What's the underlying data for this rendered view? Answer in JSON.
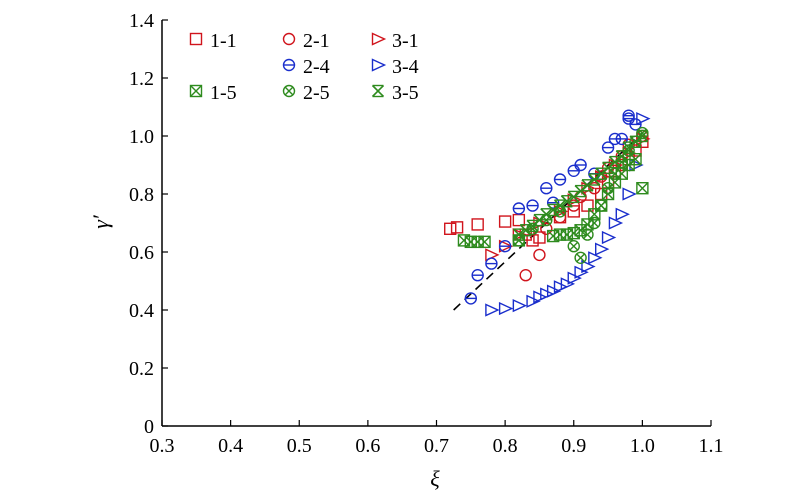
{
  "chart_data": {
    "type": "scatter",
    "title": "",
    "xlabel": "ξ",
    "ylabel": "γ′",
    "xlim": [
      0.3,
      1.1
    ],
    "ylim": [
      0,
      1.4
    ],
    "xticks": [
      0.3,
      0.4,
      0.5,
      0.6,
      0.7,
      0.8,
      0.9,
      1.0,
      1.1
    ],
    "yticks": [
      0,
      0.2,
      0.4,
      0.6,
      0.8,
      1.0,
      1.2,
      1.4
    ],
    "xtick_labels": [
      "0.3",
      "0.4",
      "0.5",
      "0.6",
      "0.7",
      "0.8",
      "0.9",
      "1.0",
      "1.1"
    ],
    "ytick_labels": [
      "0",
      "0.2",
      "0.4",
      "0.6",
      "0.8",
      "1.0",
      "1.2",
      "1.4"
    ],
    "grid": false,
    "legend_position": "top-left",
    "legend_order": [
      "1-1",
      "2-1",
      "3-1",
      "",
      "2-4",
      "3-4",
      "1-5",
      "2-5",
      "3-5"
    ],
    "fit_line": {
      "style": "dashed",
      "color": "#000000",
      "points": [
        [
          0.725,
          0.4
        ],
        [
          1.0,
          1.01
        ]
      ]
    },
    "series": [
      {
        "name": "1-1",
        "marker": "square",
        "color": "#d0141c",
        "points": [
          [
            0.72,
            0.68
          ],
          [
            0.73,
            0.685
          ],
          [
            0.76,
            0.695
          ],
          [
            0.8,
            0.705
          ],
          [
            0.82,
            0.71
          ],
          [
            0.83,
            0.66
          ],
          [
            0.84,
            0.64
          ],
          [
            0.85,
            0.65
          ],
          [
            0.88,
            0.72
          ],
          [
            0.9,
            0.74
          ],
          [
            0.92,
            0.76
          ],
          [
            0.94,
            0.8
          ],
          [
            0.95,
            0.84
          ],
          [
            0.96,
            0.88
          ],
          [
            0.97,
            0.9
          ],
          [
            0.98,
            0.92
          ],
          [
            0.99,
            0.95
          ],
          [
            1.0,
            0.98
          ]
        ]
      },
      {
        "name": "2-1",
        "marker": "circle",
        "color": "#d0141c",
        "points": [
          [
            0.83,
            0.52
          ],
          [
            0.85,
            0.59
          ],
          [
            0.86,
            0.68
          ],
          [
            0.88,
            0.72
          ],
          [
            0.9,
            0.76
          ],
          [
            0.91,
            0.79
          ],
          [
            0.93,
            0.82
          ],
          [
            0.94,
            0.86
          ],
          [
            0.95,
            0.89
          ],
          [
            0.97,
            0.93
          ],
          [
            0.98,
            0.97
          ],
          [
            1.0,
            1.0
          ]
        ]
      },
      {
        "name": "3-1",
        "marker": "triangle-right",
        "color": "#d0141c",
        "points": [
          [
            0.78,
            0.59
          ],
          [
            0.8,
            0.62
          ],
          [
            0.82,
            0.66
          ],
          [
            0.85,
            0.7
          ],
          [
            0.88,
            0.74
          ],
          [
            0.9,
            0.78
          ],
          [
            0.92,
            0.82
          ],
          [
            0.94,
            0.86
          ],
          [
            0.96,
            0.9
          ],
          [
            0.98,
            0.94
          ],
          [
            1.0,
            0.99
          ]
        ]
      },
      {
        "name": "2-4",
        "marker": "circle-bar",
        "color": "#1a2ecc",
        "points": [
          [
            0.75,
            0.44
          ],
          [
            0.76,
            0.52
          ],
          [
            0.78,
            0.56
          ],
          [
            0.8,
            0.62
          ],
          [
            0.82,
            0.75
          ],
          [
            0.84,
            0.76
          ],
          [
            0.86,
            0.82
          ],
          [
            0.87,
            0.77
          ],
          [
            0.88,
            0.85
          ],
          [
            0.9,
            0.88
          ],
          [
            0.91,
            0.9
          ],
          [
            0.93,
            0.87
          ],
          [
            0.95,
            0.96
          ],
          [
            0.96,
            0.99
          ],
          [
            0.97,
            0.99
          ],
          [
            0.98,
            1.06
          ],
          [
            0.98,
            1.07
          ],
          [
            0.99,
            1.04
          ]
        ]
      },
      {
        "name": "3-4",
        "marker": "triangle-right",
        "color": "#1a2ecc",
        "points": [
          [
            0.78,
            0.4
          ],
          [
            0.8,
            0.405
          ],
          [
            0.82,
            0.415
          ],
          [
            0.84,
            0.43
          ],
          [
            0.85,
            0.445
          ],
          [
            0.86,
            0.455
          ],
          [
            0.87,
            0.465
          ],
          [
            0.88,
            0.48
          ],
          [
            0.89,
            0.49
          ],
          [
            0.9,
            0.51
          ],
          [
            0.91,
            0.53
          ],
          [
            0.92,
            0.55
          ],
          [
            0.93,
            0.58
          ],
          [
            0.94,
            0.61
          ],
          [
            0.95,
            0.65
          ],
          [
            0.96,
            0.7
          ],
          [
            0.97,
            0.73
          ],
          [
            0.98,
            0.8
          ],
          [
            0.99,
            0.9
          ],
          [
            1.0,
            1.06
          ]
        ]
      },
      {
        "name": "1-5",
        "marker": "square-x",
        "color": "#2e8b1e",
        "points": [
          [
            0.74,
            0.64
          ],
          [
            0.75,
            0.635
          ],
          [
            0.76,
            0.635
          ],
          [
            0.77,
            0.635
          ],
          [
            0.82,
            0.64
          ],
          [
            0.87,
            0.655
          ],
          [
            0.88,
            0.66
          ],
          [
            0.89,
            0.66
          ],
          [
            0.9,
            0.665
          ],
          [
            0.91,
            0.675
          ],
          [
            0.92,
            0.695
          ],
          [
            0.93,
            0.73
          ],
          [
            0.94,
            0.76
          ],
          [
            0.95,
            0.8
          ],
          [
            0.96,
            0.84
          ],
          [
            0.97,
            0.87
          ],
          [
            0.98,
            0.9
          ],
          [
            0.99,
            0.92
          ],
          [
            1.0,
            0.82
          ]
        ]
      },
      {
        "name": "2-5",
        "marker": "circle-x",
        "color": "#2e8b1e",
        "points": [
          [
            0.82,
            0.64
          ],
          [
            0.84,
            0.68
          ],
          [
            0.86,
            0.71
          ],
          [
            0.88,
            0.74
          ],
          [
            0.9,
            0.62
          ],
          [
            0.91,
            0.58
          ],
          [
            0.92,
            0.66
          ],
          [
            0.93,
            0.7
          ],
          [
            0.94,
            0.76
          ],
          [
            0.95,
            0.82
          ],
          [
            0.96,
            0.87
          ],
          [
            0.97,
            0.91
          ],
          [
            0.98,
            0.95
          ],
          [
            0.99,
            0.98
          ],
          [
            1.0,
            1.01
          ]
        ]
      },
      {
        "name": "3-5",
        "marker": "x-bar",
        "color": "#2e8b1e",
        "points": [
          [
            0.82,
            0.66
          ],
          [
            0.83,
            0.675
          ],
          [
            0.84,
            0.69
          ],
          [
            0.85,
            0.71
          ],
          [
            0.86,
            0.73
          ],
          [
            0.87,
            0.745
          ],
          [
            0.88,
            0.76
          ],
          [
            0.89,
            0.775
          ],
          [
            0.9,
            0.79
          ],
          [
            0.91,
            0.81
          ],
          [
            0.92,
            0.83
          ],
          [
            0.93,
            0.85
          ],
          [
            0.94,
            0.87
          ],
          [
            0.95,
            0.89
          ],
          [
            0.96,
            0.91
          ],
          [
            0.97,
            0.93
          ],
          [
            0.98,
            0.96
          ],
          [
            0.99,
            0.98
          ],
          [
            1.0,
            1.0
          ]
        ]
      }
    ]
  }
}
